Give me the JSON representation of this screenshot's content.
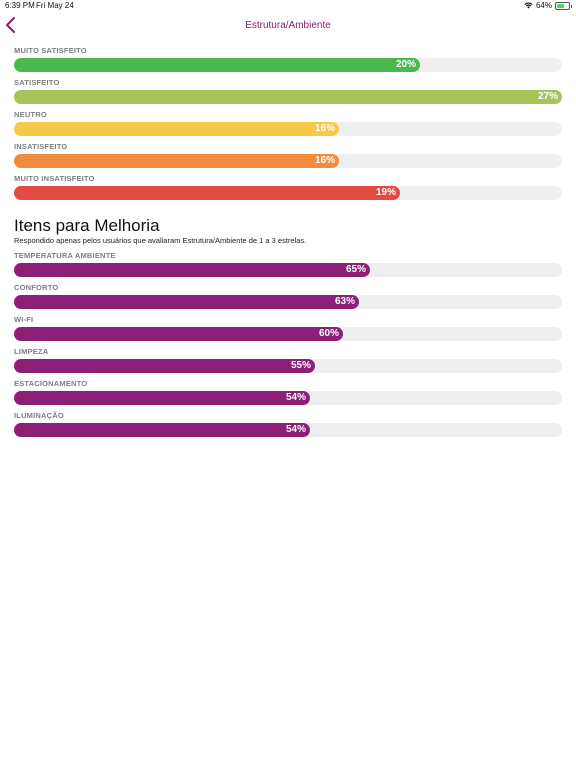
{
  "status_bar": {
    "time": "6:39 PM",
    "date": "Fri May 24",
    "battery": "64%"
  },
  "nav": {
    "title": "Estrutura/Ambiente"
  },
  "satisfaction": [
    {
      "label": "MUITO SATISFEITO",
      "value": "20%",
      "fraction": 0.74,
      "color": "#4cb94f"
    },
    {
      "label": "SATISFEITO",
      "value": "27%",
      "fraction": 1.0,
      "color": "#a6c45a"
    },
    {
      "label": "NEUTRO",
      "value": "16%",
      "fraction": 0.593,
      "color": "#f7c948"
    },
    {
      "label": "INSATISFEITO",
      "value": "16%",
      "fraction": 0.593,
      "color": "#f08c3e"
    },
    {
      "label": "MUITO INSATISFEITO",
      "value": "19%",
      "fraction": 0.704,
      "color": "#e24a42"
    }
  ],
  "improvement": {
    "title": "Itens para Melhoria",
    "subtitle": "Respondido apenas pelos usuários que avaliaram Estrutura/Ambiente de 1 a 3 estrelas.",
    "color": "#8e1f78",
    "items": [
      {
        "label": "TEMPERATURA AMBIENTE",
        "value": "65%",
        "fraction": 0.65
      },
      {
        "label": "CONFORTO",
        "value": "63%",
        "fraction": 0.63
      },
      {
        "label": "WI-FI",
        "value": "60%",
        "fraction": 0.6
      },
      {
        "label": "LIMPEZA",
        "value": "55%",
        "fraction": 0.55
      },
      {
        "label": "ESTACIONAMENTO",
        "value": "54%",
        "fraction": 0.54
      },
      {
        "label": "ILUMINAÇÃO",
        "value": "54%",
        "fraction": 0.54
      }
    ]
  }
}
